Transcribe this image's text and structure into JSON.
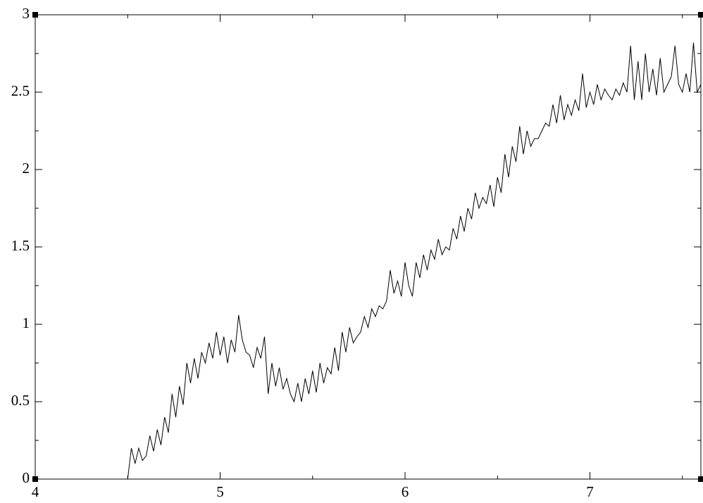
{
  "chart_data": {
    "type": "line",
    "x": [
      4.5,
      4.52,
      4.54,
      4.56,
      4.58,
      4.6,
      4.62,
      4.64,
      4.66,
      4.68,
      4.7,
      4.72,
      4.74,
      4.76,
      4.78,
      4.8,
      4.82,
      4.84,
      4.86,
      4.88,
      4.9,
      4.92,
      4.94,
      4.96,
      4.98,
      5.0,
      5.02,
      5.04,
      5.06,
      5.08,
      5.1,
      5.12,
      5.14,
      5.16,
      5.18,
      5.2,
      5.22,
      5.24,
      5.26,
      5.28,
      5.3,
      5.32,
      5.34,
      5.36,
      5.38,
      5.4,
      5.42,
      5.44,
      5.46,
      5.48,
      5.5,
      5.52,
      5.54,
      5.56,
      5.58,
      5.6,
      5.62,
      5.64,
      5.66,
      5.68,
      5.7,
      5.72,
      5.74,
      5.76,
      5.78,
      5.8,
      5.82,
      5.84,
      5.86,
      5.88,
      5.9,
      5.92,
      5.94,
      5.96,
      5.98,
      6.0,
      6.02,
      6.04,
      6.06,
      6.08,
      6.1,
      6.12,
      6.14,
      6.16,
      6.18,
      6.2,
      6.22,
      6.24,
      6.26,
      6.28,
      6.3,
      6.32,
      6.34,
      6.36,
      6.38,
      6.4,
      6.42,
      6.44,
      6.46,
      6.48,
      6.5,
      6.52,
      6.54,
      6.56,
      6.58,
      6.6,
      6.62,
      6.64,
      6.66,
      6.68,
      6.7,
      6.72,
      6.74,
      6.76,
      6.78,
      6.8,
      6.82,
      6.84,
      6.86,
      6.88,
      6.9,
      6.92,
      6.94,
      6.96,
      6.98,
      7.0,
      7.02,
      7.04,
      7.06,
      7.08,
      7.1,
      7.12,
      7.14,
      7.16,
      7.18,
      7.2,
      7.22,
      7.24,
      7.26,
      7.28,
      7.3,
      7.32,
      7.34,
      7.36,
      7.38,
      7.4,
      7.42,
      7.44,
      7.46,
      7.48,
      7.5,
      7.52,
      7.54,
      7.56,
      7.58,
      7.6
    ],
    "series": [
      {
        "color": "#000000",
        "values": [
          0,
          0.2,
          0.1,
          0.2,
          0.12,
          0.15,
          0.28,
          0.18,
          0.32,
          0.22,
          0.4,
          0.3,
          0.55,
          0.4,
          0.6,
          0.48,
          0.75,
          0.62,
          0.78,
          0.65,
          0.82,
          0.75,
          0.88,
          0.78,
          0.95,
          0.8,
          0.92,
          0.75,
          0.9,
          0.82,
          1.06,
          0.9,
          0.82,
          0.8,
          0.72,
          0.85,
          0.78,
          0.92,
          0.55,
          0.75,
          0.6,
          0.72,
          0.58,
          0.65,
          0.55,
          0.5,
          0.62,
          0.5,
          0.65,
          0.55,
          0.7,
          0.56,
          0.75,
          0.62,
          0.72,
          0.68,
          0.85,
          0.7,
          0.95,
          0.82,
          0.98,
          0.88,
          0.92,
          0.95,
          1.05,
          0.98,
          1.1,
          1.05,
          1.12,
          1.1,
          1.15,
          1.35,
          1.2,
          1.28,
          1.18,
          1.4,
          1.25,
          1.18,
          1.4,
          1.3,
          1.45,
          1.35,
          1.48,
          1.42,
          1.55,
          1.45,
          1.5,
          1.48,
          1.62,
          1.55,
          1.7,
          1.6,
          1.75,
          1.68,
          1.85,
          1.75,
          1.82,
          1.78,
          1.9,
          1.76,
          1.95,
          1.85,
          2.1,
          1.95,
          2.15,
          2.05,
          2.28,
          2.1,
          2.25,
          2.15,
          2.2,
          2.2,
          2.25,
          2.3,
          2.28,
          2.42,
          2.3,
          2.48,
          2.32,
          2.42,
          2.35,
          2.45,
          2.38,
          2.62,
          2.4,
          2.5,
          2.42,
          2.55,
          2.45,
          2.52,
          2.48,
          2.45,
          2.52,
          2.48,
          2.56,
          2.5,
          2.8,
          2.45,
          2.7,
          2.45,
          2.75,
          2.5,
          2.65,
          2.48,
          2.72,
          2.5,
          2.55,
          2.6,
          2.8,
          2.55,
          2.5,
          2.62,
          2.5,
          2.82,
          2.5,
          2.55
        ]
      }
    ],
    "xlim": [
      4,
      7.6
    ],
    "xticks": [
      4,
      5,
      6,
      7
    ],
    "xminorticks": [
      4.5,
      5.5,
      6.5,
      7.5
    ],
    "ylim": [
      0,
      3
    ],
    "yticks": [
      0,
      0.5,
      1,
      1.5,
      2,
      2.5,
      3
    ],
    "yminorticks": [
      0.25,
      0.75,
      1.25,
      1.75,
      2.25,
      2.75
    ]
  }
}
